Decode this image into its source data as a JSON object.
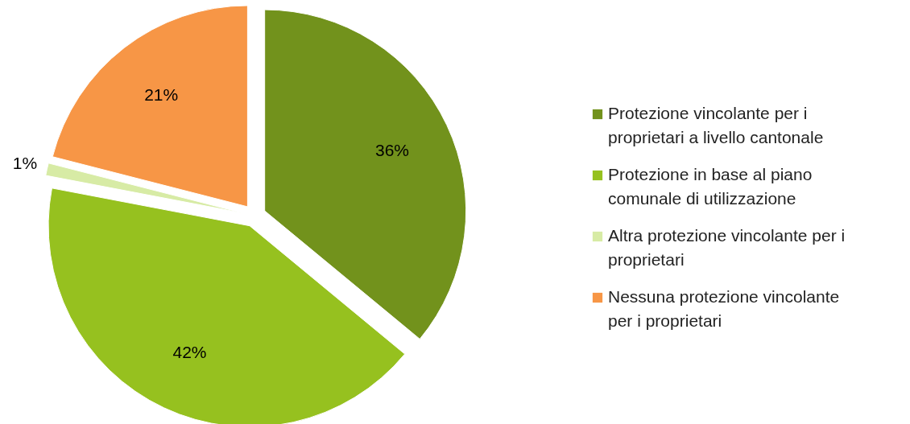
{
  "chart_data": {
    "type": "pie",
    "categories": [
      "Protezione vincolante per i proprietari a livello cantonale",
      "Protezione in base al piano comunale di utilizzazione",
      "Altra protezione vincolante per i proprietari",
      "Nessuna protezione vincolante per i proprietari"
    ],
    "values": [
      36,
      42,
      1,
      21
    ],
    "value_labels": [
      "36%",
      "42%",
      "1%",
      "21%"
    ],
    "colors": [
      "#72921c",
      "#96c11f",
      "#d7eba5",
      "#f79646"
    ],
    "legend": "right"
  }
}
